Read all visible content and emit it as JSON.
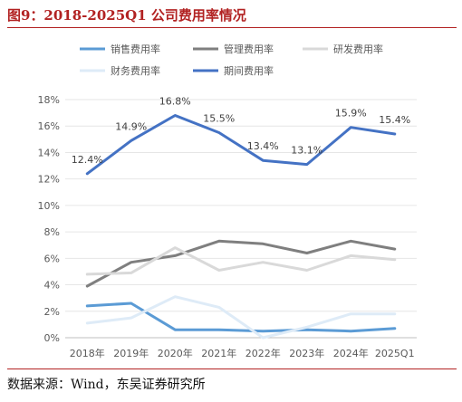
{
  "header": {
    "title": "图9：2018-2025Q1 公司费用率情况"
  },
  "footer": {
    "source": "数据来源：Wind，东吴证券研究所"
  },
  "chart_data": {
    "type": "line",
    "title": "",
    "xlabel": "",
    "ylabel": "",
    "categories": [
      "2018年",
      "2019年",
      "2020年",
      "2021年",
      "2022年",
      "2023年",
      "2024年",
      "2025Q1"
    ],
    "ylim": [
      0,
      18
    ],
    "yticks": [
      "0%",
      "2%",
      "4%",
      "6%",
      "8%",
      "10%",
      "12%",
      "14%",
      "16%",
      "18%"
    ],
    "grid": true,
    "legend_position": "top",
    "series": [
      {
        "name": "销售费用率",
        "color": "#5b9bd5",
        "values": [
          2.4,
          2.6,
          0.6,
          0.6,
          0.5,
          0.6,
          0.5,
          0.7
        ]
      },
      {
        "name": "管理费用率",
        "color": "#7f7f7f",
        "values": [
          3.9,
          5.7,
          6.2,
          7.3,
          7.1,
          6.4,
          7.3,
          6.7
        ]
      },
      {
        "name": "研发费用率",
        "color": "#d9d9d9",
        "values": [
          4.8,
          4.9,
          6.8,
          5.1,
          5.7,
          5.1,
          6.2,
          5.9
        ]
      },
      {
        "name": "财务费用率",
        "color": "#deebf7",
        "values": [
          1.1,
          1.5,
          3.1,
          2.3,
          0.0,
          0.8,
          1.8,
          1.8
        ]
      },
      {
        "name": "期间费用率",
        "color": "#4472c4",
        "values": [
          12.4,
          14.9,
          16.8,
          15.5,
          13.4,
          13.1,
          15.9,
          15.4
        ],
        "labels": [
          "12.4%",
          "14.9%",
          "16.8%",
          "15.5%",
          "13.4%",
          "13.1%",
          "15.9%",
          "15.4%"
        ]
      }
    ]
  }
}
